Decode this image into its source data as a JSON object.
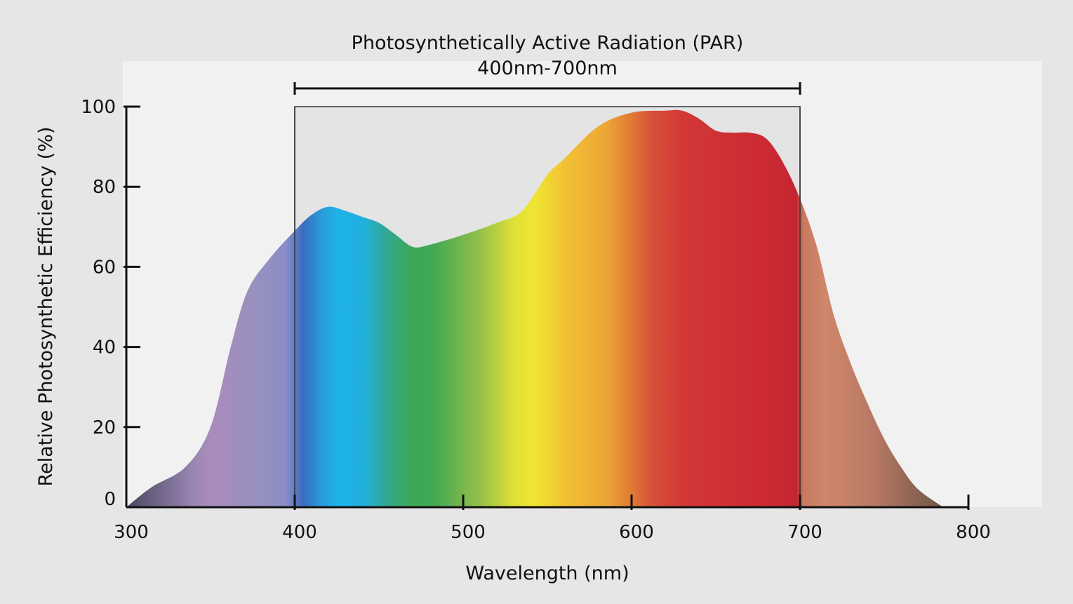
{
  "chart_data": {
    "type": "area",
    "title": "Photosynthetically Active Radiation (PAR)",
    "subtitle": "400nm-700nm",
    "xlabel": "Wavelength (nm)",
    "ylabel": "Relative Photosynthetic Efficiency (%)",
    "xlim": [
      300,
      800
    ],
    "ylim": [
      0,
      100
    ],
    "x_ticks": [
      300,
      400,
      500,
      600,
      700,
      800
    ],
    "y_ticks": [
      0,
      20,
      40,
      60,
      80,
      100
    ],
    "highlight_range": [
      400,
      700
    ],
    "grid": false,
    "series": [
      {
        "x": [
          300,
          315,
          335,
          350,
          362,
          372,
          385,
          400,
          410,
          420,
          430,
          440,
          450,
          460,
          470,
          480,
          500,
          520,
          535,
          550,
          560,
          580,
          600,
          620,
          630,
          640,
          650,
          660,
          670,
          680,
          690,
          700,
          710,
          720,
          730,
          740,
          750,
          760,
          770,
          785
        ],
        "values": [
          0,
          5,
          10,
          20,
          40,
          54,
          62,
          69,
          73,
          75,
          74,
          72.5,
          71,
          68,
          65,
          65.5,
          68,
          71,
          74,
          83,
          87,
          95,
          98.5,
          99,
          99,
          97,
          94,
          93.5,
          93.5,
          92,
          86,
          77,
          65,
          48,
          36,
          26,
          17,
          10,
          4.5,
          0
        ]
      }
    ]
  }
}
